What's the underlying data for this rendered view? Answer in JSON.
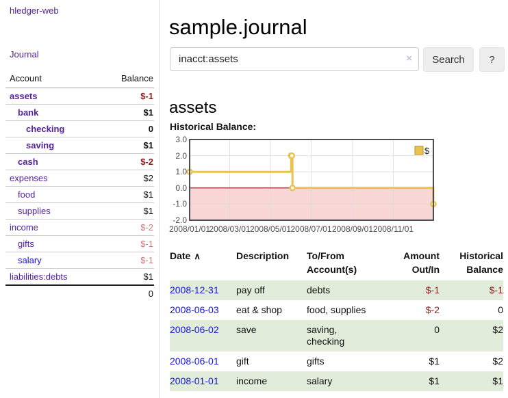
{
  "app": {
    "brand": "hledger-web"
  },
  "sidebar": {
    "journal_link": "Journal",
    "accounts": {
      "col_account": "Account",
      "col_balance": "Balance",
      "rows": [
        {
          "name": "assets",
          "depth": 1,
          "bold": true,
          "balance": "$-1",
          "negative": true,
          "unvisited": false
        },
        {
          "name": "bank",
          "depth": 2,
          "bold": true,
          "balance": "$1",
          "negative": false,
          "unvisited": false
        },
        {
          "name": "checking",
          "depth": 3,
          "bold": true,
          "balance": "0",
          "negative": false,
          "unvisited": false
        },
        {
          "name": "saving",
          "depth": 3,
          "bold": true,
          "balance": "$1",
          "negative": false,
          "unvisited": false
        },
        {
          "name": "cash",
          "depth": 2,
          "bold": true,
          "balance": "$-2",
          "negative": true,
          "unvisited": false
        },
        {
          "name": "expenses",
          "depth": 1,
          "bold": false,
          "balance": "$2",
          "negative": false,
          "unvisited": false
        },
        {
          "name": "food",
          "depth": 2,
          "bold": false,
          "balance": "$1",
          "negative": false,
          "unvisited": false
        },
        {
          "name": "supplies",
          "depth": 2,
          "bold": false,
          "balance": "$1",
          "negative": false,
          "unvisited": false
        },
        {
          "name": "income",
          "depth": 1,
          "bold": false,
          "balance": "$-2",
          "negative": true,
          "unvisited": false
        },
        {
          "name": "gifts",
          "depth": 2,
          "bold": false,
          "balance": "$-1",
          "negative": true,
          "unvisited": false
        },
        {
          "name": "salary",
          "depth": 2,
          "bold": false,
          "balance": "$-1",
          "negative": true,
          "unvisited": true
        },
        {
          "name": "liabilities:debts",
          "depth": 1,
          "bold": false,
          "balance": "$1",
          "negative": false,
          "unvisited": false
        }
      ],
      "total": "0"
    }
  },
  "header": {
    "title": "sample.journal",
    "search_value": "inacct:assets",
    "clear_icon": "×",
    "search_button": "Search",
    "help_button": "?"
  },
  "register": {
    "heading": "assets",
    "chart_title": "Historical Balance:",
    "columns": {
      "date": "Date",
      "sort_arrow": "∧",
      "description": "Description",
      "accounts_line1": "To/From",
      "accounts_line2": "Account(s)",
      "amount_line1": "Amount",
      "amount_line2": "Out/In",
      "balance_line1": "Historical",
      "balance_line2": "Balance"
    },
    "transactions": [
      {
        "date": "2008-12-31",
        "description": "pay off",
        "accounts": "debts",
        "amount": "$-1",
        "amount_negative": true,
        "balance": "$-1",
        "balance_negative": true
      },
      {
        "date": "2008-06-03",
        "description": "eat & shop",
        "accounts": "food, supplies",
        "amount": "$-2",
        "amount_negative": true,
        "balance": "0",
        "balance_negative": false
      },
      {
        "date": "2008-06-02",
        "description": "save",
        "accounts": "saving, checking",
        "amount": "0",
        "amount_negative": false,
        "balance": "$2",
        "balance_negative": false
      },
      {
        "date": "2008-06-01",
        "description": "gift",
        "accounts": "gifts",
        "amount": "$1",
        "amount_negative": false,
        "balance": "$2",
        "balance_negative": false
      },
      {
        "date": "2008-01-01",
        "description": "income",
        "accounts": "salary",
        "amount": "$1",
        "amount_negative": false,
        "balance": "$1",
        "balance_negative": false
      }
    ]
  },
  "chart_data": {
    "type": "line",
    "title": "Historical Balance",
    "step": true,
    "series": [
      {
        "name": "$",
        "points": [
          [
            "2008-01-01",
            1
          ],
          [
            "2008-06-01",
            2
          ],
          [
            "2008-06-02",
            2
          ],
          [
            "2008-06-03",
            0
          ],
          [
            "2008-12-31",
            -1
          ]
        ]
      }
    ],
    "x_range": [
      "2008-01-01",
      "2008-12-31"
    ],
    "x_ticks": [
      "2008/01/01",
      "2008/03/01",
      "2008/05/01",
      "2008/07/01",
      "2008/09/01",
      "2008/11/01"
    ],
    "y_ticks": [
      3.0,
      2.0,
      1.0,
      0.0,
      -1.0,
      -2.0
    ],
    "ylim": [
      -2,
      3
    ],
    "grid": true,
    "legend": {
      "label": "$",
      "position": "top-right"
    }
  },
  "colors": {
    "accent_purple": "#54219d",
    "link_blue": "#1412dc",
    "negative_strong": "#8c1c1c",
    "negative_faded": "#c67d7d",
    "table_negative": "#8c1c1c",
    "row_stripe_green": "#e1edda",
    "chart_line": "#e9c34f",
    "chart_marker_fill": "#ffffff",
    "chart_negative_fill": "#f9d7d7",
    "chart_zero_line": "#8f1414",
    "chart_border": "#4d4d4d",
    "chart_grid": "#dcdcdc",
    "button_bg": "#eeeeee"
  }
}
